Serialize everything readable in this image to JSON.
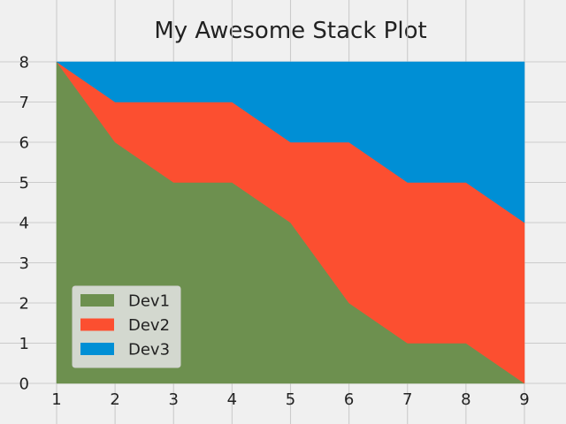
{
  "chart_data": {
    "type": "area",
    "stacked": true,
    "title": "My Awesome Stack Plot",
    "xlabel": "",
    "ylabel": "",
    "x": [
      1,
      2,
      3,
      4,
      5,
      6,
      7,
      8,
      9
    ],
    "series": [
      {
        "name": "Dev1",
        "values": [
          8,
          6,
          5,
          5,
          4,
          2,
          1,
          1,
          0
        ],
        "color": "#6d904f"
      },
      {
        "name": "Dev2",
        "values": [
          0,
          1,
          2,
          2,
          2,
          4,
          4,
          4,
          4
        ],
        "color": "#fc4f30"
      },
      {
        "name": "Dev3",
        "values": [
          0,
          1,
          1,
          1,
          2,
          2,
          3,
          3,
          4
        ],
        "color": "#008fd5"
      }
    ],
    "xlim": [
      1,
      9
    ],
    "ylim": [
      0,
      8
    ],
    "xticks": [
      1,
      2,
      3,
      4,
      5,
      6,
      7,
      8,
      9
    ],
    "yticks": [
      0,
      1,
      2,
      3,
      4,
      5,
      6,
      7,
      8
    ],
    "grid": true,
    "legend": "lower-left"
  },
  "colors": {
    "background": "#f0f0f0",
    "grid": "#cbcbcb",
    "text": "#222222"
  }
}
